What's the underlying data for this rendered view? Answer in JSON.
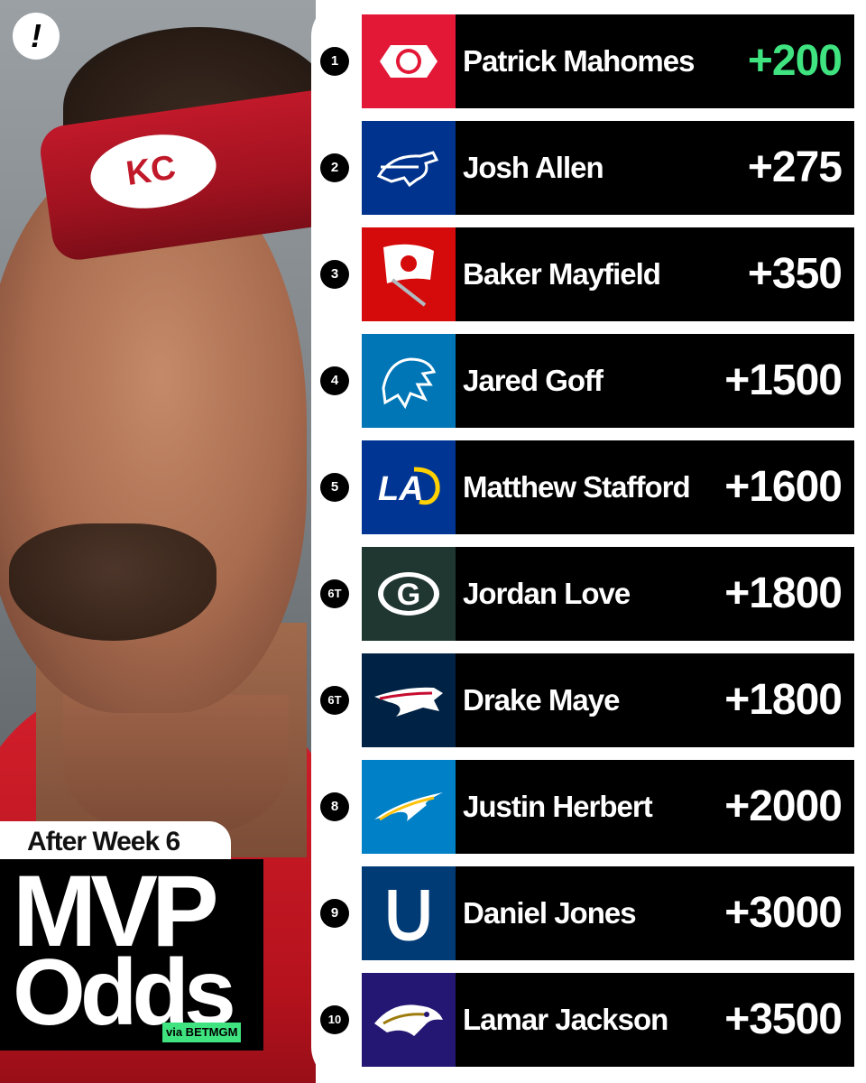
{
  "brand_icon": "exclamation-icon",
  "title": {
    "week": "After Week 6",
    "line1": "MVP",
    "line2": "Odds",
    "via": "via BETMGM"
  },
  "photo": {
    "headband_logo": "KC"
  },
  "players": [
    {
      "rank": "1",
      "name": "Patrick Mahomes",
      "odds": "+200",
      "team_color": "#e31837",
      "logo": "chiefs-logo",
      "highlight": true
    },
    {
      "rank": "2",
      "name": "Josh Allen",
      "odds": "+275",
      "team_color": "#00338d",
      "logo": "bills-logo"
    },
    {
      "rank": "3",
      "name": "Baker Mayfield",
      "odds": "+350",
      "team_color": "#d50a0a",
      "logo": "buccaneers-logo"
    },
    {
      "rank": "4",
      "name": "Jared Goff",
      "odds": "+1500",
      "team_color": "#0076b6",
      "logo": "lions-logo"
    },
    {
      "rank": "5",
      "name": "Matthew Stafford",
      "odds": "+1600",
      "team_color": "#003594",
      "logo": "rams-logo",
      "logo_text": "LA"
    },
    {
      "rank": "6T",
      "name": "Jordan Love",
      "odds": "+1800",
      "team_color": "#203731",
      "logo": "packers-logo",
      "logo_text": "G"
    },
    {
      "rank": "6T",
      "name": "Drake Maye",
      "odds": "+1800",
      "team_color": "#002244",
      "logo": "patriots-logo"
    },
    {
      "rank": "8",
      "name": "Justin Herbert",
      "odds": "+2000",
      "team_color": "#0080c6",
      "logo": "chargers-logo"
    },
    {
      "rank": "9",
      "name": "Daniel Jones",
      "odds": "+3000",
      "team_color": "#003b75",
      "logo": "colts-logo"
    },
    {
      "rank": "10",
      "name": "Lamar Jackson",
      "odds": "+3500",
      "team_color": "#241773",
      "logo": "ravens-logo"
    }
  ],
  "colors": {
    "highlight": "#3fe37f",
    "bar": "#000000"
  }
}
